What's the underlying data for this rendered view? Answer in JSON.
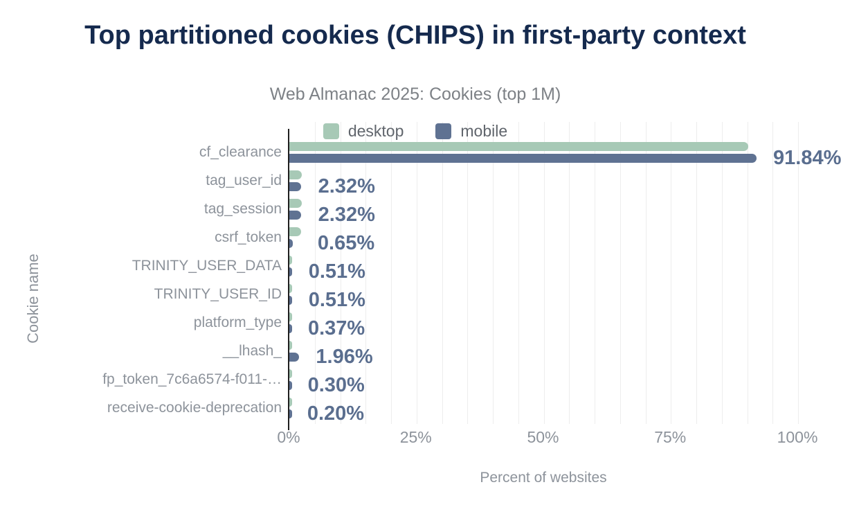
{
  "chart_data": {
    "type": "bar",
    "orientation": "horizontal",
    "title": "Top partitioned cookies (CHIPS) in first-party context",
    "subtitle": "Web Almanac 2025: Cookies (top 1M)",
    "xlabel": "Percent of websites",
    "ylabel": "Cookie name",
    "xlim": [
      0,
      100
    ],
    "x_ticks": [
      {
        "value": 0,
        "label": "0%"
      },
      {
        "value": 25,
        "label": "25%"
      },
      {
        "value": 50,
        "label": "50%"
      },
      {
        "value": 75,
        "label": "75%"
      },
      {
        "value": 100,
        "label": "100%"
      }
    ],
    "grid": {
      "show": true,
      "minor_step_pct": 5,
      "color": "#ededed"
    },
    "legend_position": "top",
    "categories": [
      "cf_clearance",
      "tag_user_id",
      "tag_session",
      "csrf_token",
      "TRINITY_USER_DATA",
      "TRINITY_USER_ID",
      "platform_type",
      "__lhash_",
      "fp_token_7c6a6574-f011-…",
      "receive-cookie-deprecation"
    ],
    "series": [
      {
        "name": "desktop",
        "color": "#a7c9b6",
        "values": [
          90.2,
          2.4,
          2.4,
          2.3,
          0.5,
          0.5,
          0.4,
          0.4,
          0.35,
          0.25
        ]
      },
      {
        "name": "mobile",
        "color": "#5f7292",
        "values": [
          91.84,
          2.32,
          2.32,
          0.65,
          0.51,
          0.51,
          0.37,
          1.96,
          0.3,
          0.2
        ]
      }
    ],
    "value_labels": [
      "91.84%",
      "2.32%",
      "2.32%",
      "0.65%",
      "0.51%",
      "0.51%",
      "0.37%",
      "1.96%",
      "0.30%",
      "0.20%"
    ],
    "value_label_color": "#5a6e8f"
  },
  "colors": {
    "title": "#152a4e",
    "subtitle": "#7d8186",
    "axis_text": "#8d939b",
    "legend_text": "#60656c",
    "axis_line": "#1f1f1f",
    "background": "#ffffff"
  }
}
